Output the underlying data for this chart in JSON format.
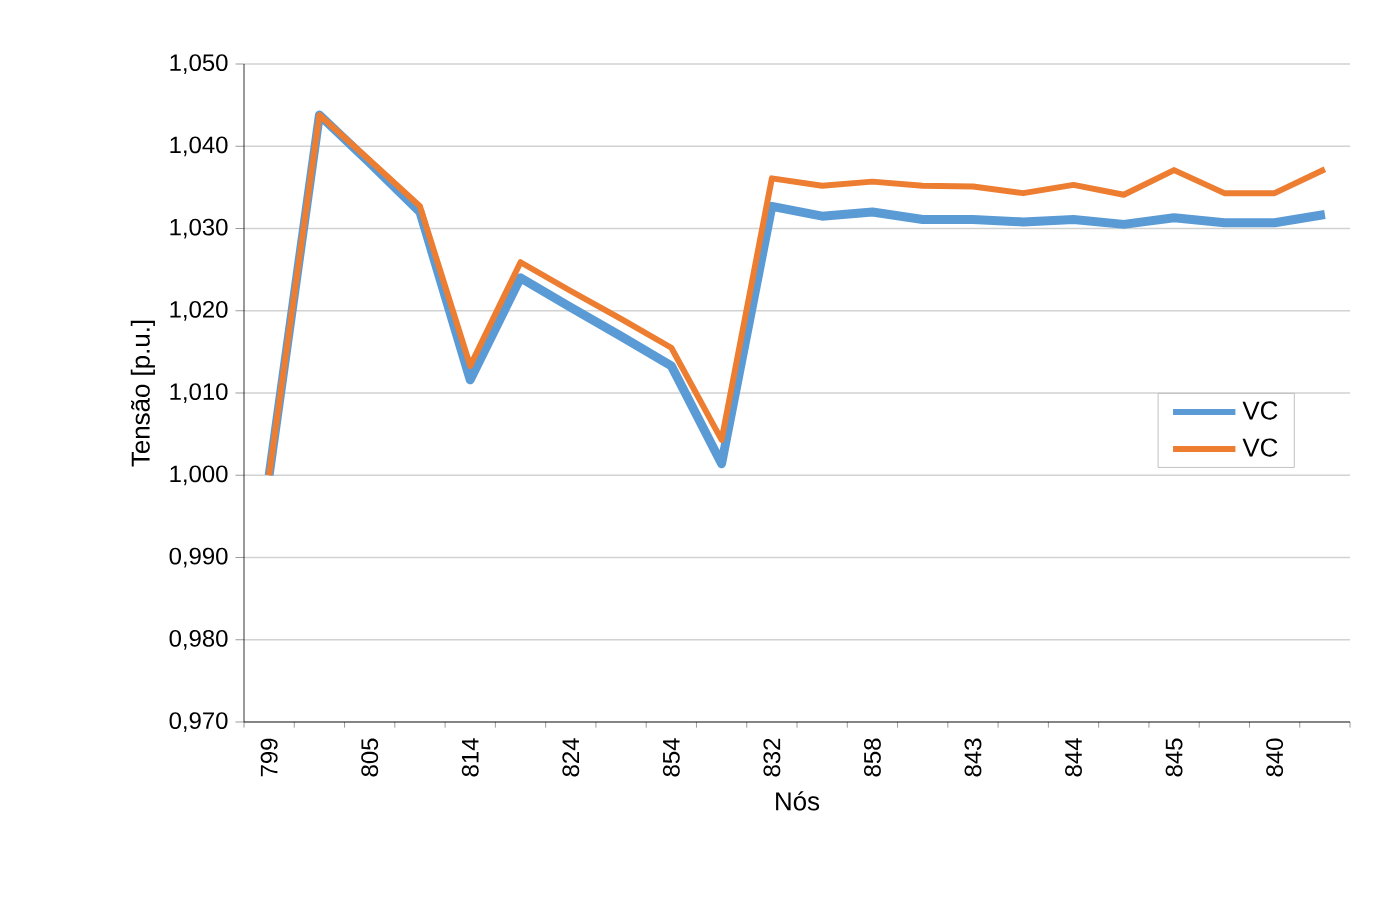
{
  "chart_data": {
    "type": "line",
    "xlabel": "Nós",
    "ylabel": "Tensão [p.u.]",
    "categories": [
      "799",
      null,
      "805",
      null,
      "814",
      null,
      "824",
      null,
      "854",
      null,
      "832",
      null,
      "858",
      null,
      "843",
      null,
      "844",
      null,
      "845",
      null,
      "840",
      null
    ],
    "series": [
      {
        "name": "VC",
        "color": "#5b9bd5",
        "values": [
          1.0,
          1.0438,
          1.038,
          1.032,
          1.0116,
          1.024,
          1.0204,
          1.0169,
          1.0133,
          1.0014,
          1.0327,
          1.0315,
          1.032,
          1.0311,
          1.0311,
          1.0308,
          1.0311,
          1.0305,
          1.0313,
          1.0307,
          1.0307,
          1.0317
        ]
      },
      {
        "name": "VC",
        "color": "#ed7d31",
        "values": [
          1.0,
          1.0438,
          1.0383,
          1.0327,
          1.0133,
          1.0259,
          1.0224,
          1.019,
          1.0155,
          1.0043,
          1.0361,
          1.0352,
          1.0357,
          1.0352,
          1.0351,
          1.0343,
          1.0353,
          1.0341,
          1.0371,
          1.0343,
          1.0343,
          1.0372
        ]
      }
    ],
    "ylim": [
      0.97,
      1.05
    ],
    "yticks": [
      {
        "value": 0.97,
        "label": "0,970"
      },
      {
        "value": 0.98,
        "label": "0,980"
      },
      {
        "value": 0.99,
        "label": "0,990"
      },
      {
        "value": 1.0,
        "label": "1,000"
      },
      {
        "value": 1.01,
        "label": "1,010"
      },
      {
        "value": 1.02,
        "label": "1,020"
      },
      {
        "value": 1.03,
        "label": "1,030"
      },
      {
        "value": 1.04,
        "label": "1,040"
      },
      {
        "value": 1.05,
        "label": "1,050"
      }
    ],
    "grid": "y",
    "legend": "right",
    "marker": "none",
    "line_style": "solid"
  }
}
